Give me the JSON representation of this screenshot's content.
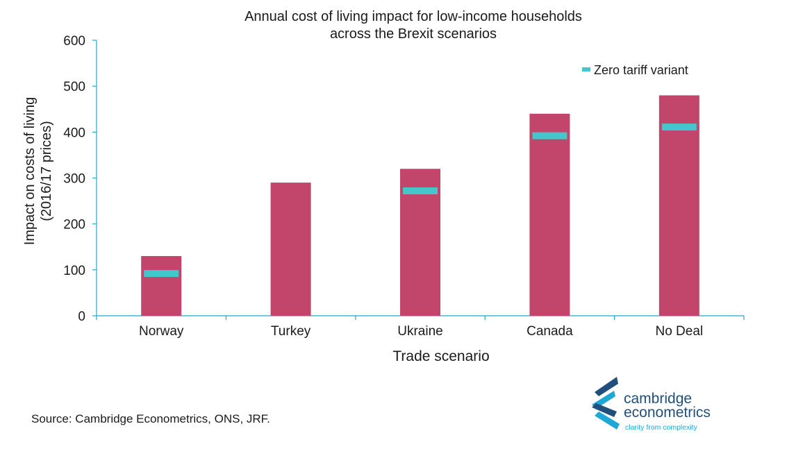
{
  "chart_data": {
    "type": "bar",
    "title": [
      "Annual cost of living impact for low-income households",
      "across the Brexit scenarios"
    ],
    "xlabel": "Trade scenario",
    "ylabel": [
      "Impact on costs of living",
      "(2016/17 prices)"
    ],
    "ylim": [
      0,
      600
    ],
    "yticks": [
      0,
      100,
      200,
      300,
      400,
      500,
      600
    ],
    "categories": [
      "Norway",
      "Turkey",
      "Ukraine",
      "Canada",
      "No Deal"
    ],
    "series": [
      {
        "values": [
          130,
          290,
          320,
          440,
          480
        ],
        "color": "#c2456b"
      },
      {
        "name": "Zero tariff variant",
        "values": [
          92,
          null,
          272,
          392,
          411
        ],
        "color": "#43c6cc",
        "marker": "dash"
      }
    ],
    "legend_position": "top-right",
    "grid": false
  },
  "source": "Source: Cambridge Econometrics, ONS, JRF.",
  "logo": {
    "line1": "cambridge",
    "line2": "econometrics",
    "tagline": "clarity from complexity",
    "colors": {
      "dark": "#1f4f7a",
      "light": "#1fa8d6"
    }
  }
}
